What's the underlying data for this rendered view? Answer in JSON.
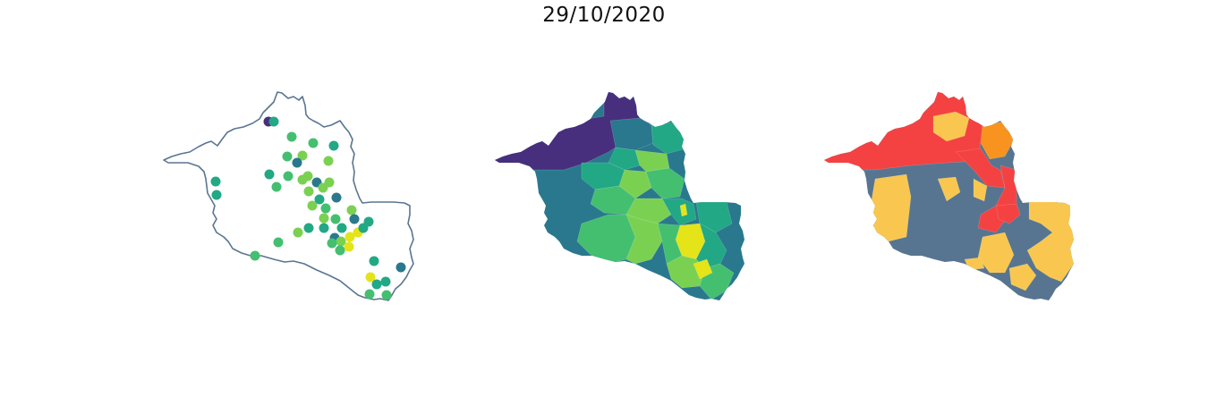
{
  "title": "29/10/2020",
  "colors": {
    "outline": "#5a7591",
    "viridis_dark_purple": "#472f7d",
    "viridis_blue": "#2a788e",
    "viridis_teal": "#22a884",
    "viridis_green": "#44bf70",
    "viridis_light_green": "#7ad151",
    "viridis_yellow": "#e4e419",
    "risk_red": "#f44242",
    "risk_orange": "#f7931e",
    "risk_yellow": "#f9c74f",
    "risk_slate": "#577590"
  },
  "maps": [
    {
      "name": "municipality-points-map",
      "type": "point"
    },
    {
      "name": "municipality-choropleth-viridis",
      "type": "choropleth"
    },
    {
      "name": "municipality-choropleth-risk",
      "type": "choropleth"
    }
  ]
}
